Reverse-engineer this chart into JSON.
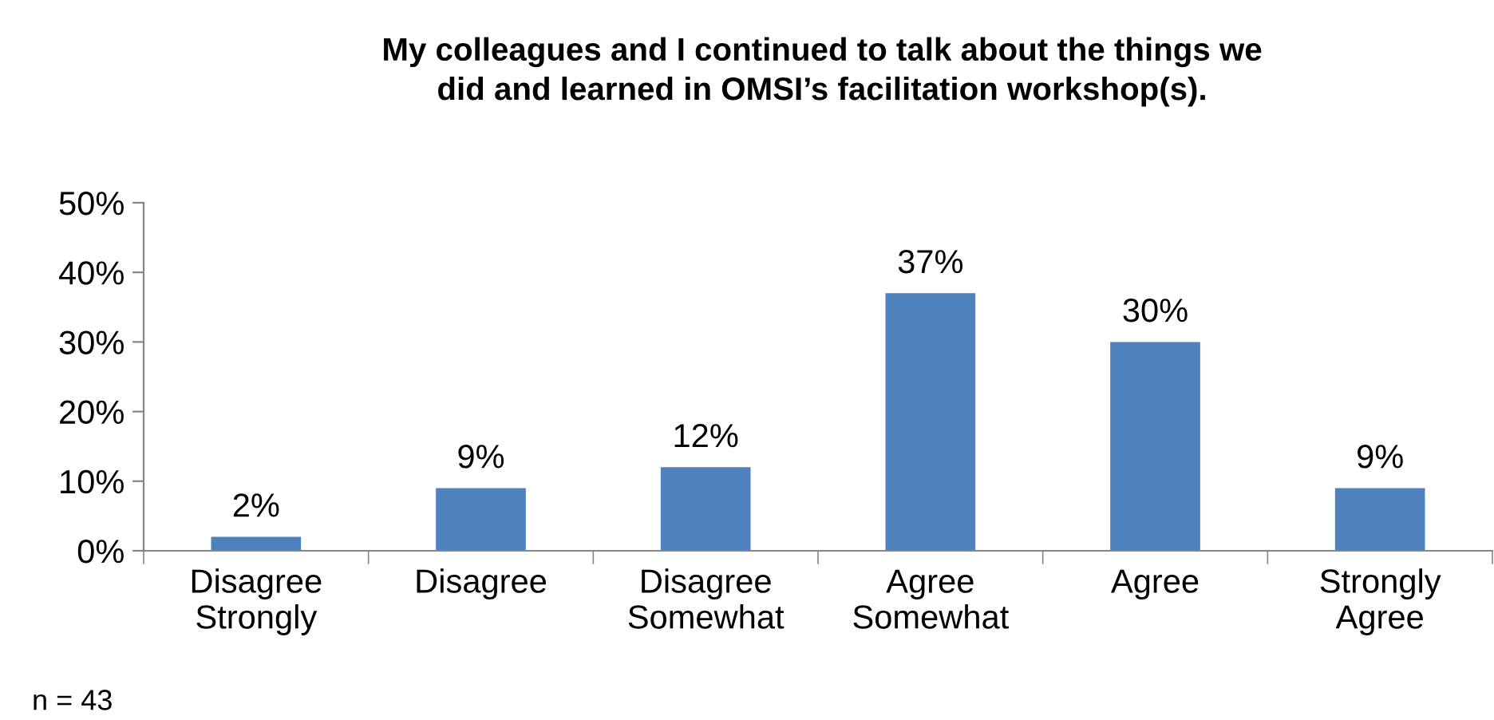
{
  "chart_data": {
    "type": "bar",
    "title": "My colleagues and I continued to talk about the things we\ndid and learned in OMSI’s facilitation workshop(s).",
    "categories": [
      "Disagree\nStrongly",
      "Disagree",
      "Disagree\nSomewhat",
      "Agree\nSomewhat",
      "Agree",
      "Strongly\nAgree"
    ],
    "values": [
      2,
      9,
      12,
      37,
      30,
      9
    ],
    "value_labels": [
      "2%",
      "9%",
      "12%",
      "37%",
      "30%",
      "9%"
    ],
    "color": "#4f81bd",
    "ylim": [
      0,
      50
    ],
    "yticks": [
      {
        "value": 0,
        "label": "0%"
      },
      {
        "value": 10,
        "label": "10%"
      },
      {
        "value": 20,
        "label": "20%"
      },
      {
        "value": 30,
        "label": "30%"
      },
      {
        "value": 40,
        "label": "40%"
      },
      {
        "value": 50,
        "label": "50%"
      }
    ],
    "grid": false,
    "legend": false,
    "annotations": [
      "n = 43"
    ]
  }
}
